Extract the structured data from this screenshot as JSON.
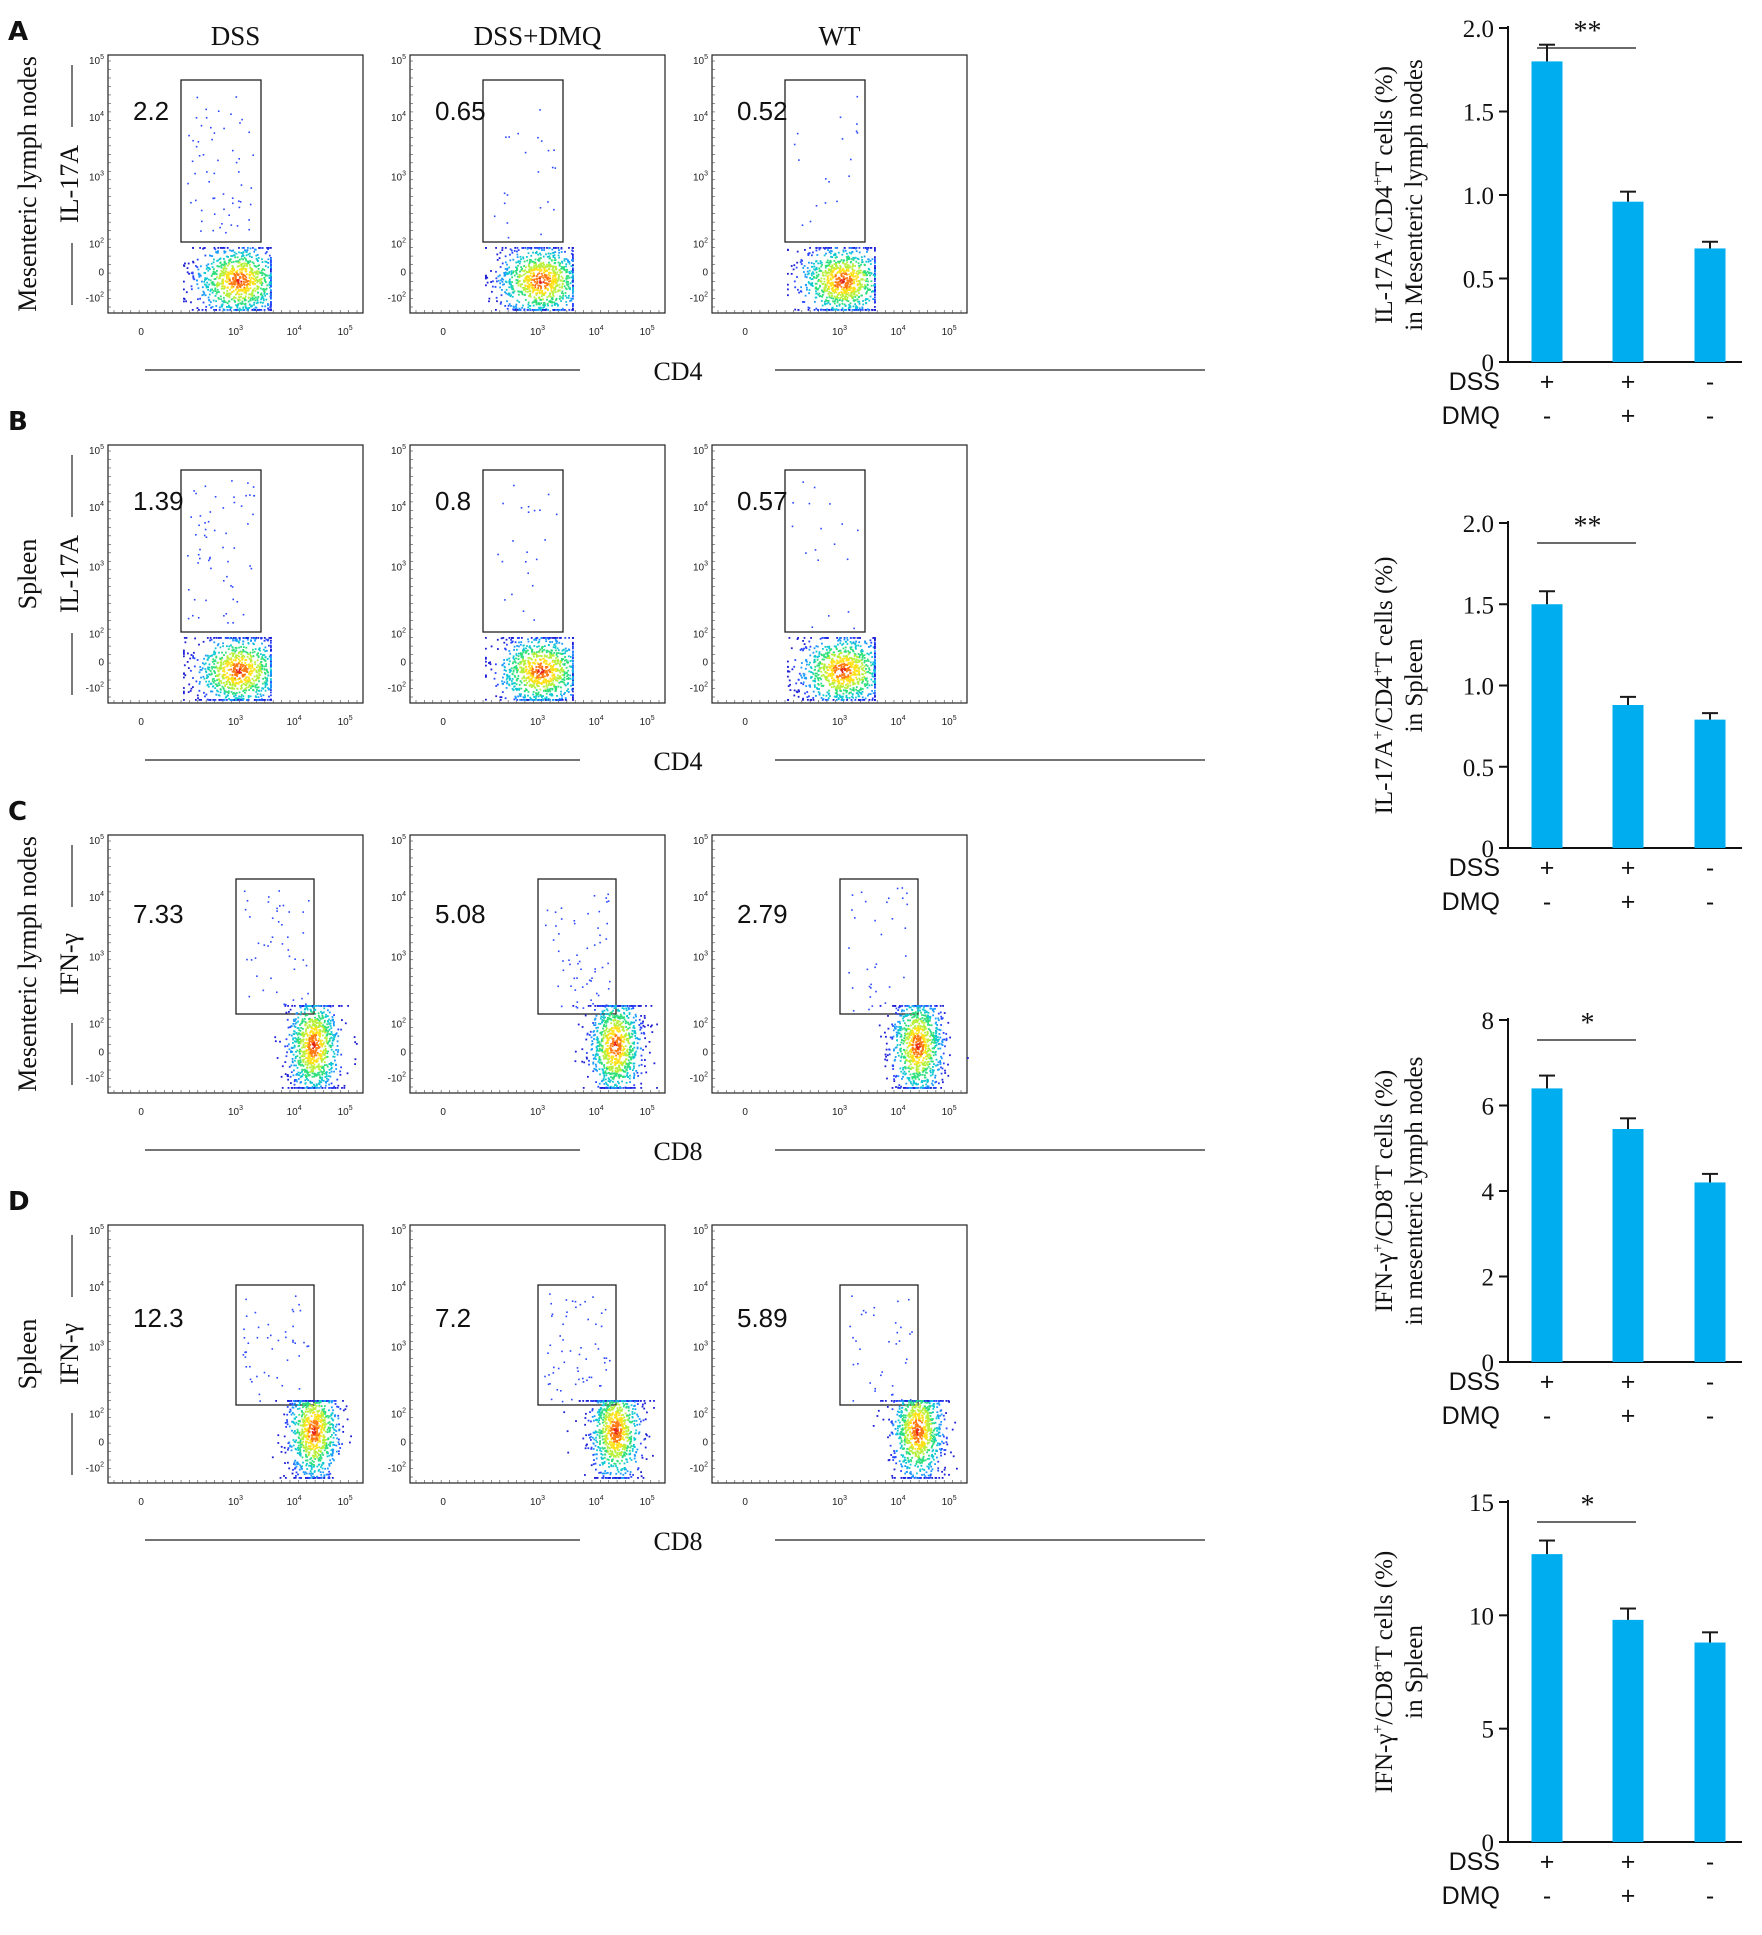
{
  "column_headers": [
    "DSS",
    "DSS+DMQ",
    "WT"
  ],
  "flow_tick_labels": {
    "y_major": [
      {
        "base": "10",
        "exp": "5"
      },
      {
        "base": "10",
        "exp": "4"
      },
      {
        "base": "10",
        "exp": "3"
      },
      {
        "base": "10",
        "exp": "2"
      },
      {
        "base": "0",
        "exp": ""
      },
      {
        "base": "-10",
        "exp": "2"
      }
    ],
    "x_major": [
      {
        "base": "0",
        "exp": ""
      },
      {
        "base": "10",
        "exp": "3"
      },
      {
        "base": "10",
        "exp": "4"
      },
      {
        "base": "10",
        "exp": "5"
      }
    ]
  },
  "panels": [
    {
      "letter": "A",
      "tissue": "Mesenteric lymph nodes",
      "marker": "IL-17A",
      "x_marker": "CD4",
      "gate_values": [
        "2.2",
        "0.65",
        "0.52"
      ],
      "show_headers": true,
      "bar_ylabel_line1": {
        "pre": "IL-17A",
        "sup1": "+",
        "mid": "/CD4",
        "sup2": "+",
        "post": "T cells (%)"
      },
      "bar_ylabel_line2": "in Mesenteric lymph nodes"
    },
    {
      "letter": "B",
      "tissue": "Spleen",
      "marker": "IL-17A",
      "x_marker": "CD4",
      "gate_values": [
        "1.39",
        "0.8",
        "0.57"
      ],
      "show_headers": false,
      "bar_ylabel_line1": {
        "pre": "IL-17A",
        "sup1": "+",
        "mid": "/CD4",
        "sup2": "+",
        "post": "T cells (%)"
      },
      "bar_ylabel_line2": "in Spleen"
    },
    {
      "letter": "C",
      "tissue": "Mesenteric lymph nodes",
      "marker": "IFN-γ",
      "x_marker": "CD8",
      "gate_values": [
        "7.33",
        "5.08",
        "2.79"
      ],
      "show_headers": false,
      "bar_ylabel_line1": {
        "pre": "IFN-γ",
        "sup1": "+",
        "mid": "/CD8",
        "sup2": "+",
        "post": "T cells (%)"
      },
      "bar_ylabel_line2": "in mesenteric lymph nodes"
    },
    {
      "letter": "D",
      "tissue": "Spleen",
      "marker": "IFN-γ",
      "x_marker": "CD8",
      "gate_values": [
        "12.3",
        "7.2",
        "5.89"
      ],
      "show_headers": false,
      "bar_ylabel_line1": {
        "pre": "IFN-γ",
        "sup1": "+",
        "mid": "/CD8",
        "sup2": "+",
        "post": "T cells (%)"
      },
      "bar_ylabel_line2": "in Spleen"
    }
  ],
  "bar_colors": {
    "bar": "#00aeef",
    "error": "#1a1a1a"
  },
  "condition_rows": [
    {
      "label": "DSS",
      "marks": [
        "+",
        "+",
        "-"
      ]
    },
    {
      "label": "DMQ",
      "marks": [
        "-",
        "+",
        "-"
      ]
    }
  ],
  "chart_data": [
    {
      "type": "bar",
      "categories": [
        "DSS+ DMQ-",
        "DSS+ DMQ+",
        "DSS- DMQ-"
      ],
      "values": [
        1.8,
        0.96,
        0.68
      ],
      "errors": [
        0.1,
        0.06,
        0.04
      ],
      "ylim": [
        0,
        2.0
      ],
      "ticks": [
        "0",
        "0.5",
        "1.0",
        "1.5",
        "2.0"
      ],
      "tick_values": [
        0,
        0.5,
        1.0,
        1.5,
        2.0
      ],
      "significance": {
        "label": "**",
        "between": [
          0,
          1
        ]
      }
    },
    {
      "type": "bar",
      "categories": [
        "DSS+ DMQ-",
        "DSS+ DMQ+",
        "DSS- DMQ-"
      ],
      "values": [
        1.5,
        0.88,
        0.79
      ],
      "errors": [
        0.08,
        0.05,
        0.04
      ],
      "ylim": [
        0,
        2.0
      ],
      "ticks": [
        "0",
        "0.5",
        "1.0",
        "1.5",
        "2.0"
      ],
      "tick_values": [
        0,
        0.5,
        1.0,
        1.5,
        2.0
      ],
      "significance": {
        "label": "**",
        "between": [
          0,
          1
        ]
      }
    },
    {
      "type": "bar",
      "categories": [
        "DSS+ DMQ-",
        "DSS+ DMQ+",
        "DSS- DMQ-"
      ],
      "values": [
        6.4,
        5.45,
        4.2
      ],
      "errors": [
        0.3,
        0.25,
        0.2
      ],
      "ylim": [
        0,
        8
      ],
      "ticks": [
        "0",
        "2",
        "4",
        "6",
        "8"
      ],
      "tick_values": [
        0,
        2,
        4,
        6,
        8
      ],
      "significance": {
        "label": "*",
        "between": [
          0,
          1
        ]
      }
    },
    {
      "type": "bar",
      "categories": [
        "DSS+ DMQ-",
        "DSS+ DMQ+",
        "DSS- DMQ-"
      ],
      "values": [
        12.7,
        9.8,
        8.8
      ],
      "errors": [
        0.6,
        0.5,
        0.45
      ],
      "ylim": [
        0,
        15
      ],
      "ticks": [
        "0",
        "5",
        "10",
        "15"
      ],
      "tick_values": [
        0,
        5,
        10,
        15
      ],
      "significance": {
        "label": "*",
        "between": [
          0,
          1
        ]
      }
    }
  ]
}
